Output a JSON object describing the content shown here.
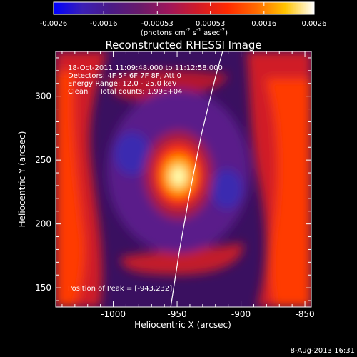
{
  "colorbar": {
    "ticks": [
      "-0.0026",
      "-0.0016",
      "-0.00053",
      "0.00053",
      "0.0016",
      "0.0026"
    ],
    "unit_label": "(photons cm",
    "unit_exp1": "-2",
    "unit_mid": " s",
    "unit_exp2": "-1",
    "unit_end": " asec",
    "unit_exp3": "-2",
    "unit_close": ")",
    "gradient_colors": [
      "#0000ff",
      "#3b1fb5",
      "#4b1a85",
      "#6a1a6a",
      "#a0165a",
      "#d21b27",
      "#ff2a00",
      "#ff6a00",
      "#ffc400",
      "#ffffff"
    ]
  },
  "chart_data": {
    "type": "heatmap",
    "title": "Reconstructed RHESSI Image",
    "xlabel": "Heliocentric X (arcsec)",
    "ylabel": "Heliocentric Y (arcsec)",
    "xlim": [
      -1045,
      -845
    ],
    "ylim": [
      135,
      335
    ],
    "x_ticks": [
      -1000,
      -950,
      -900,
      -850
    ],
    "y_ticks": [
      150,
      200,
      250,
      300
    ],
    "x_tick_labels": [
      "-1000",
      "-950",
      "-900",
      "-850"
    ],
    "y_tick_labels": [
      "150",
      "200",
      "250",
      "300"
    ],
    "value_range": [
      -0.0026,
      0.0026
    ],
    "peak": {
      "x": -943,
      "y": 232
    },
    "info_lines": [
      "18-Oct-2011 11:09:48.000 to 11:12:58.000",
      "Detectors: 4F 5F 6F 7F 8F, Att 0",
      "Energy Range: 12.0 - 25.0 keV",
      "Clean     Total counts: 1.99E+04"
    ],
    "peak_label": "Position of Peak = [-943,232]",
    "limb_curve": [
      [
        -955,
        135
      ],
      [
        -948,
        180
      ],
      [
        -940,
        225
      ],
      [
        -931,
        270
      ],
      [
        -920,
        315
      ],
      [
        -913,
        340
      ]
    ]
  },
  "footer": {
    "date": "8-Aug-2013 16:31"
  }
}
